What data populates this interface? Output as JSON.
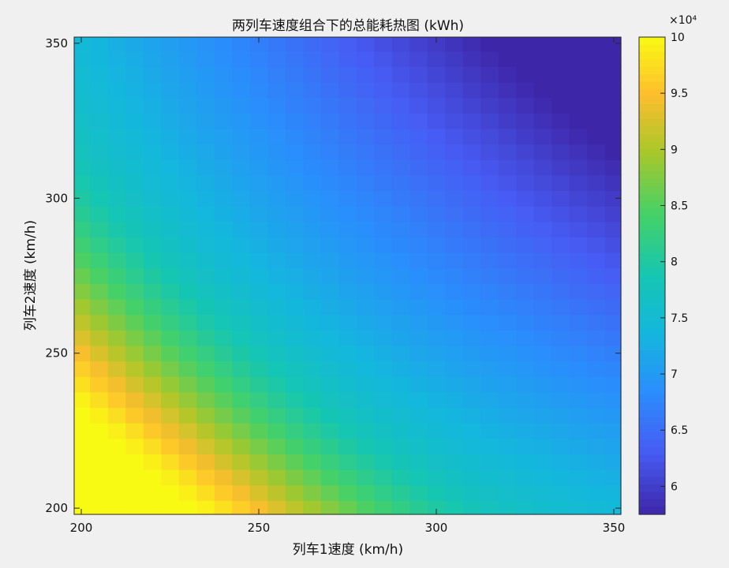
{
  "chart_data": {
    "type": "heatmap",
    "title": "两列车速度组合下的总能耗热图 (kWh)",
    "xlabel": "列车1速度 (km/h)",
    "ylabel": "列车2速度 (km/h)",
    "x_range": [
      200,
      350
    ],
    "y_range": [
      200,
      350
    ],
    "x_step": 5,
    "y_step": 5,
    "xlim": [
      198,
      352
    ],
    "ylim": [
      198,
      352
    ],
    "x_ticks": [
      "200",
      "250",
      "300",
      "350"
    ],
    "y_ticks": [
      "200",
      "250",
      "300",
      "350"
    ],
    "colormap": "parula",
    "colorbar": {
      "exponent_label": "×10⁴",
      "ticks": [
        "6",
        "6.5",
        "7",
        "7.5",
        "8",
        "8.5",
        "9",
        "9.5",
        "10"
      ],
      "range": [
        5.75,
        10.0
      ]
    },
    "value_unit_scale": 10000,
    "corner_values": {
      "x200_y200": 10.0,
      "x350_y200": 7.6,
      "x200_y350": 7.8,
      "x350_y350": 5.75
    },
    "ridge_note": "values are highest along the lower-left diagonal band and decrease toward the upper-right"
  }
}
